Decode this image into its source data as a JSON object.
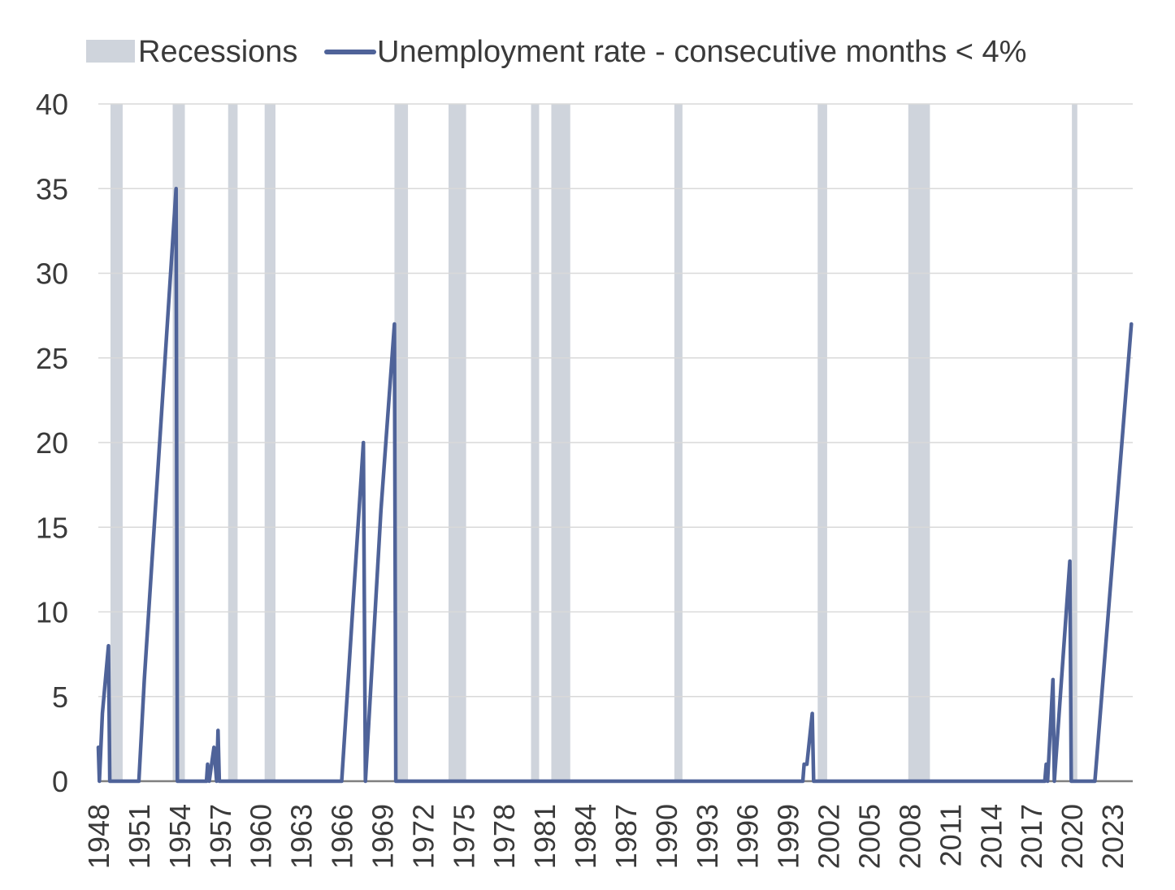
{
  "chart_data": {
    "type": "line",
    "title": "",
    "xlabel": "",
    "ylabel": "",
    "ylim": [
      0,
      40
    ],
    "xlim": [
      1948,
      2024.5
    ],
    "grid": true,
    "legend": {
      "placement": "top-left"
    },
    "y_ticks": [
      "0",
      "5",
      "10",
      "15",
      "20",
      "25",
      "30",
      "35",
      "40"
    ],
    "x_ticks": [
      "1948",
      "1951",
      "1954",
      "1957",
      "1960",
      "1963",
      "1966",
      "1969",
      "1972",
      "1975",
      "1978",
      "1981",
      "1984",
      "1987",
      "1990",
      "1993",
      "1996",
      "1999",
      "2002",
      "2005",
      "2008",
      "2011",
      "2014",
      "2017",
      "2020",
      "2023"
    ],
    "colors": {
      "recession": "#cfd4dc",
      "line": "#4f6399",
      "grid": "#d9d9d9",
      "axis": "#7f7f7f"
    },
    "recessions": {
      "name": "Recessions",
      "periods": [
        [
          1948.9,
          1949.8
        ],
        [
          1953.5,
          1954.4
        ],
        [
          1957.6,
          1958.3
        ],
        [
          1960.3,
          1961.1
        ],
        [
          1969.9,
          1970.9
        ],
        [
          1973.9,
          1975.2
        ],
        [
          1980.0,
          1980.6
        ],
        [
          1981.5,
          1982.9
        ],
        [
          1990.6,
          1991.2
        ],
        [
          2001.2,
          2001.9
        ],
        [
          2007.9,
          2009.5
        ],
        [
          2020.0,
          2020.4
        ]
      ]
    },
    "series": [
      {
        "name": "Unemployment rate - consecutive months < 4%",
        "points": [
          [
            1948.0,
            2
          ],
          [
            1948.08,
            0
          ],
          [
            1948.3,
            4
          ],
          [
            1948.75,
            8
          ],
          [
            1948.85,
            0
          ],
          [
            1951.0,
            0
          ],
          [
            1951.4,
            6
          ],
          [
            1953.75,
            35
          ],
          [
            1953.85,
            0
          ],
          [
            1956.0,
            0
          ],
          [
            1956.08,
            1
          ],
          [
            1956.2,
            0
          ],
          [
            1956.55,
            2
          ],
          [
            1956.75,
            0
          ],
          [
            1956.85,
            3
          ],
          [
            1956.95,
            0
          ],
          [
            1966.0,
            0
          ],
          [
            1967.6,
            20
          ],
          [
            1967.75,
            0
          ],
          [
            1968.9,
            16
          ],
          [
            1969.9,
            27
          ],
          [
            1970.0,
            0
          ],
          [
            2000.1,
            0
          ],
          [
            2000.2,
            1
          ],
          [
            2000.4,
            1
          ],
          [
            2000.8,
            4
          ],
          [
            2000.9,
            0
          ],
          [
            2018.0,
            0
          ],
          [
            2018.1,
            1
          ],
          [
            2018.2,
            0
          ],
          [
            2018.6,
            6
          ],
          [
            2018.7,
            0
          ],
          [
            2019.85,
            13
          ],
          [
            2019.95,
            0
          ],
          [
            2021.7,
            0
          ],
          [
            2021.8,
            1
          ],
          [
            2022.3,
            6
          ],
          [
            2024.4,
            27
          ]
        ]
      }
    ]
  }
}
